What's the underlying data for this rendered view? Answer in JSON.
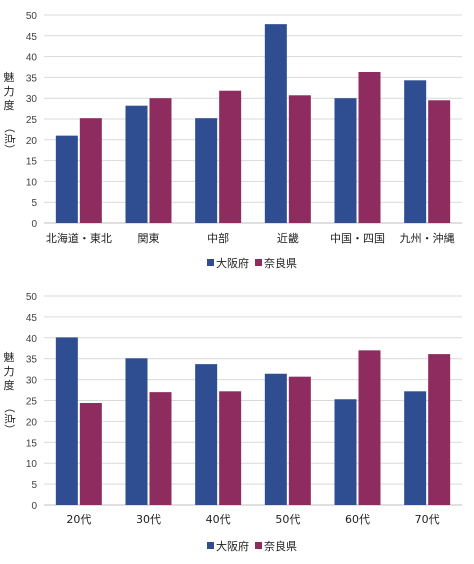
{
  "chart_data": [
    {
      "type": "bar",
      "categories": [
        "北海道・東北",
        "関東",
        "中部",
        "近畿",
        "中国・四国",
        "九州・沖縄"
      ],
      "series": [
        {
          "name": "大阪府",
          "values": [
            21,
            28.2,
            25.2,
            47.8,
            30,
            34.3
          ],
          "color": "#2E4E91"
        },
        {
          "name": "奈良県",
          "values": [
            25.2,
            30,
            31.8,
            30.7,
            36.3,
            29.5
          ],
          "color": "#8E2C5F"
        }
      ],
      "ylabel_chars": [
        "魅",
        "力",
        "度",
        "（点）"
      ],
      "ylim": [
        0,
        50
      ],
      "yticks": [
        0,
        5,
        10,
        15,
        20,
        25,
        30,
        35,
        40,
        45,
        50
      ],
      "grid": true,
      "legend": "bottom"
    },
    {
      "type": "bar",
      "categories": [
        "20代",
        "30代",
        "40代",
        "50代",
        "60代",
        "70代"
      ],
      "series": [
        {
          "name": "大阪府",
          "values": [
            40.1,
            35.1,
            33.7,
            31.4,
            25.3,
            27.2
          ],
          "color": "#2E4E91"
        },
        {
          "name": "奈良県",
          "values": [
            24.4,
            27,
            27.2,
            30.7,
            37,
            36.1
          ],
          "color": "#8E2C5F"
        }
      ],
      "ylabel_chars": [
        "魅",
        "力",
        "度",
        "（点）"
      ],
      "ylim": [
        0,
        50
      ],
      "yticks": [
        0,
        5,
        10,
        15,
        20,
        25,
        30,
        35,
        40,
        45,
        50
      ],
      "grid": true,
      "legend": "bottom"
    }
  ]
}
